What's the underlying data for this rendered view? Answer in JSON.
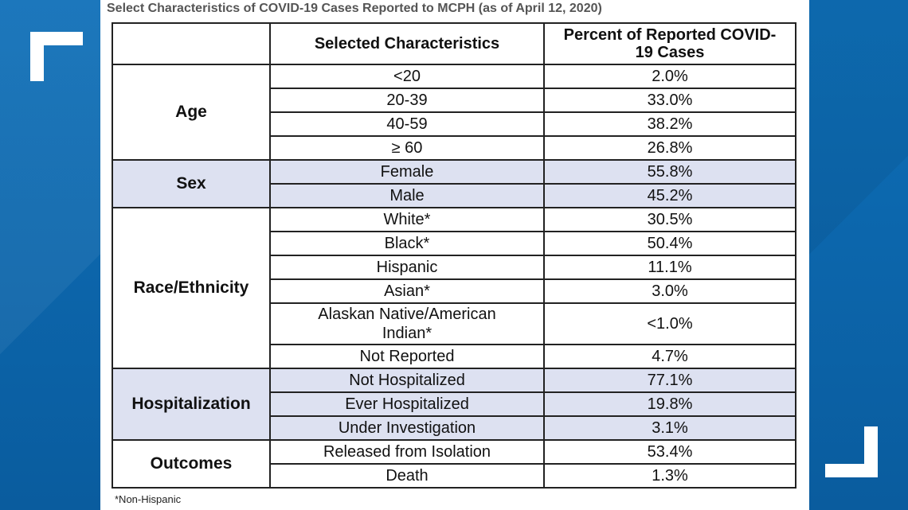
{
  "title": "Select Characteristics of COVID-19 Cases Reported to MCPH (as of April 12, 2020)",
  "headers": [
    "",
    "Selected Characteristics",
    "Percent of Reported COVID-19 Cases"
  ],
  "header_lines": [
    "Percent of Reported COVID-",
    "19 Cases"
  ],
  "groups": [
    {
      "name": "Age",
      "rows": [
        {
          "label": "<20",
          "value": "2.0%"
        },
        {
          "label": "20-39",
          "value": "33.0%"
        },
        {
          "label": "40-59",
          "value": "38.2%"
        },
        {
          "label": "≥ 60",
          "value": "26.8%"
        }
      ]
    },
    {
      "name": "Sex",
      "rows": [
        {
          "label": "Female",
          "value": "55.8%"
        },
        {
          "label": "Male",
          "value": "45.2%"
        }
      ]
    },
    {
      "name": "Race/Ethnicity",
      "rows": [
        {
          "label": "White*",
          "value": "30.5%"
        },
        {
          "label": "Black*",
          "value": "50.4%"
        },
        {
          "label": "Hispanic",
          "value": "11.1%"
        },
        {
          "label": "Asian*",
          "value": "3.0%"
        },
        {
          "label": "Alaskan Native/American Indian*",
          "label_lines": [
            "Alaskan Native/American",
            "Indian*"
          ],
          "value": "<1.0%"
        },
        {
          "label": "Not Reported",
          "value": "4.7%"
        }
      ]
    },
    {
      "name": "Hospitalization",
      "rows": [
        {
          "label": "Not Hospitalized",
          "value": "77.1%"
        },
        {
          "label": "Ever Hospitalized",
          "value": "19.8%"
        },
        {
          "label": "Under Investigation",
          "value": "3.1%"
        }
      ]
    },
    {
      "name": "Outcomes",
      "rows": [
        {
          "label": "Released from Isolation",
          "value": "53.4%"
        },
        {
          "label": "Death",
          "value": "1.3%"
        }
      ]
    }
  ],
  "footnote": "*Non-Hispanic",
  "colors": {
    "background_blue": "#0b63a8",
    "shade": "#dde1f1",
    "border": "#222222"
  }
}
